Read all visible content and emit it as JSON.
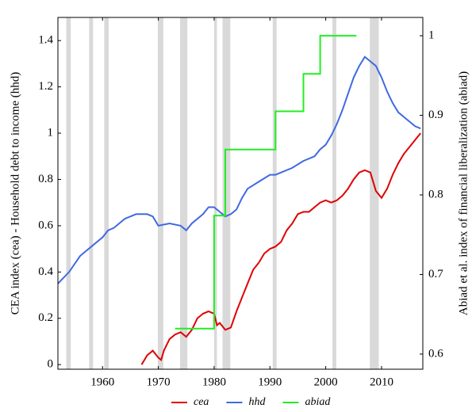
{
  "chart_data": {
    "type": "line",
    "y_label": "CEA index (cea) - Household debt to income (hhd)",
    "y2_label": "Abiad et al. index of financial liberalization (abiad)",
    "xlim": [
      1952,
      2017.4
    ],
    "xticks": [
      1960,
      1970,
      1980,
      1990,
      2000,
      2010
    ],
    "ylim": [
      -0.02,
      1.5
    ],
    "yticks": [
      0,
      0.2,
      0.4,
      0.6,
      0.8,
      1,
      1.2,
      1.4
    ],
    "y2lim": [
      0.581,
      1.023
    ],
    "y2ticks": [
      0.6,
      0.7,
      0.8,
      0.9,
      1
    ],
    "shade_color": "#d9d9d9",
    "recession_bands": [
      [
        1953.5,
        1954.3
      ],
      [
        1957.6,
        1958.3
      ],
      [
        1960.3,
        1961.1
      ],
      [
        1969.9,
        1970.9
      ],
      [
        1973.9,
        1975.2
      ],
      [
        1980,
        1980.5
      ],
      [
        1981.5,
        1982.9
      ],
      [
        1990.5,
        1991.2
      ],
      [
        2001.2,
        2001.9
      ],
      [
        2007.9,
        2009.5
      ]
    ],
    "series": [
      {
        "name": "cea",
        "color": "#e00000",
        "x": [
          1967,
          1968,
          1969,
          1970,
          1970.5,
          1971,
          1972,
          1973,
          1974,
          1975,
          1976,
          1977,
          1978,
          1979,
          1980,
          1980.5,
          1981,
          1982,
          1983,
          1984,
          1985,
          1986,
          1987,
          1988,
          1989,
          1990,
          1991,
          1992,
          1993,
          1994,
          1995,
          1996,
          1997,
          1998,
          1999,
          2000,
          2001,
          2002,
          2003,
          2004,
          2005,
          2006,
          2007,
          2008,
          2009,
          2010,
          2011,
          2012,
          2013,
          2014,
          2015,
          2016,
          2017
        ],
        "values": [
          0.0,
          0.04,
          0.06,
          0.03,
          0.02,
          0.06,
          0.11,
          0.13,
          0.14,
          0.12,
          0.15,
          0.2,
          0.22,
          0.23,
          0.22,
          0.17,
          0.18,
          0.15,
          0.16,
          0.23,
          0.29,
          0.35,
          0.41,
          0.44,
          0.48,
          0.5,
          0.51,
          0.53,
          0.58,
          0.61,
          0.65,
          0.66,
          0.66,
          0.68,
          0.7,
          0.71,
          0.7,
          0.71,
          0.73,
          0.76,
          0.8,
          0.83,
          0.84,
          0.83,
          0.75,
          0.72,
          0.76,
          0.82,
          0.87,
          0.91,
          0.94,
          0.97,
          1.0
        ]
      },
      {
        "name": "hhd",
        "color": "#4169e1",
        "x": [
          1952,
          1954,
          1956,
          1958,
          1960,
          1961,
          1962,
          1964,
          1966,
          1968,
          1969,
          1970,
          1972,
          1974,
          1975,
          1976,
          1978,
          1979,
          1980,
          1981,
          1982,
          1983,
          1984,
          1985,
          1986,
          1988,
          1990,
          1991,
          1992,
          1994,
          1996,
          1998,
          1999,
          2000,
          2001,
          2002,
          2003,
          2004,
          2005,
          2006,
          2007,
          2008,
          2009,
          2010,
          2011,
          2012,
          2013,
          2014,
          2015,
          2016,
          2017
        ],
        "values": [
          0.35,
          0.4,
          0.47,
          0.51,
          0.55,
          0.58,
          0.59,
          0.63,
          0.65,
          0.65,
          0.64,
          0.6,
          0.61,
          0.6,
          0.58,
          0.61,
          0.65,
          0.68,
          0.68,
          0.66,
          0.64,
          0.65,
          0.67,
          0.72,
          0.76,
          0.79,
          0.82,
          0.82,
          0.83,
          0.85,
          0.88,
          0.9,
          0.93,
          0.95,
          0.99,
          1.04,
          1.1,
          1.17,
          1.24,
          1.29,
          1.33,
          1.31,
          1.29,
          1.24,
          1.18,
          1.13,
          1.09,
          1.07,
          1.05,
          1.03,
          1.02
        ]
      },
      {
        "name": "abiad",
        "color": "#22ee22",
        "axis": "y2",
        "x": [
          1973,
          1980,
          1980,
          1982,
          1982,
          1991,
          1991,
          1996,
          1996,
          1999,
          1999,
          2005.5
        ],
        "values": [
          0.632,
          0.632,
          0.774,
          0.774,
          0.857,
          0.857,
          0.905,
          0.905,
          0.952,
          0.952,
          1.0,
          1.0
        ]
      }
    ]
  }
}
